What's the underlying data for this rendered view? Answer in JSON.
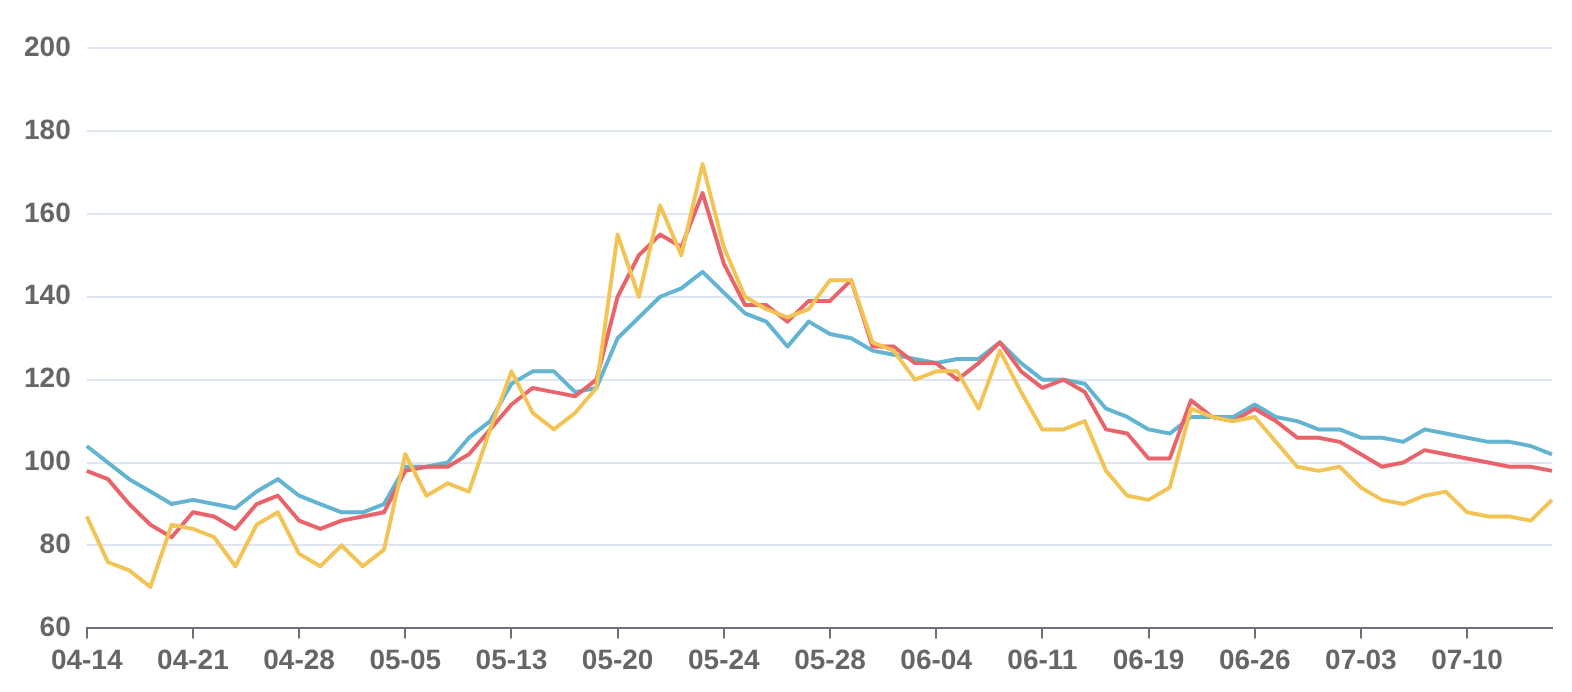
{
  "chart_data": {
    "type": "line",
    "categories": [
      "04-14",
      null,
      null,
      null,
      null,
      "04-21",
      null,
      null,
      null,
      null,
      "04-28",
      null,
      null,
      null,
      null,
      "05-05",
      null,
      null,
      null,
      null,
      "05-13",
      null,
      null,
      null,
      null,
      "05-20",
      null,
      null,
      null,
      null,
      "05-24",
      null,
      null,
      null,
      null,
      "05-28",
      null,
      null,
      null,
      null,
      "06-04",
      null,
      null,
      null,
      null,
      "06-11",
      null,
      null,
      null,
      null,
      "06-19",
      null,
      null,
      null,
      null,
      "06-26",
      null,
      null,
      null,
      null,
      "07-03",
      null,
      null,
      null,
      null,
      "07-10",
      null,
      null,
      null,
      null
    ],
    "series": [
      {
        "color": "#f2c455",
        "values": [
          87,
          76,
          74,
          70,
          85,
          84,
          82,
          75,
          85,
          88,
          78,
          75,
          80,
          75,
          79,
          102,
          92,
          95,
          93,
          108,
          122,
          112,
          108,
          112,
          118,
          155,
          140,
          162,
          150,
          172,
          152,
          140,
          137,
          135,
          137,
          144,
          144,
          129,
          127,
          120,
          122,
          122,
          113,
          127,
          117,
          108,
          108,
          110,
          98,
          92,
          91,
          94,
          113,
          111,
          110,
          111,
          105,
          99,
          98,
          99,
          94,
          91,
          90,
          92,
          93,
          88,
          87,
          87,
          86,
          91
        ]
      },
      {
        "color": "#e8646a",
        "values": [
          98,
          96,
          90,
          85,
          82,
          88,
          87,
          84,
          90,
          92,
          86,
          84,
          86,
          87,
          88,
          98,
          99,
          99,
          102,
          108,
          114,
          118,
          117,
          116,
          120,
          140,
          150,
          155,
          152,
          165,
          148,
          138,
          138,
          134,
          139,
          139,
          144,
          128,
          128,
          124,
          124,
          120,
          124,
          129,
          122,
          118,
          120,
          117,
          108,
          107,
          101,
          101,
          115,
          111,
          110,
          113,
          110,
          106,
          106,
          105,
          102,
          99,
          100,
          103,
          102,
          101,
          100,
          99,
          99,
          98
        ]
      },
      {
        "color": "#62b4d1",
        "values": [
          104,
          100,
          96,
          93,
          90,
          91,
          90,
          89,
          93,
          96,
          92,
          90,
          88,
          88,
          90,
          99,
          99,
          100,
          106,
          110,
          119,
          122,
          122,
          117,
          118,
          130,
          135,
          140,
          142,
          146,
          141,
          136,
          134,
          128,
          134,
          131,
          130,
          127,
          126,
          125,
          124,
          125,
          125,
          129,
          124,
          120,
          120,
          119,
          113,
          111,
          108,
          107,
          111,
          111,
          111,
          114,
          111,
          110,
          108,
          108,
          106,
          106,
          105,
          108,
          107,
          106,
          105,
          105,
          104,
          102
        ]
      }
    ],
    "ylim": [
      60,
      200
    ],
    "yticks": [
      60,
      80,
      100,
      120,
      140,
      160,
      180,
      200
    ],
    "grid": "y",
    "legend": false,
    "marker": "none",
    "line_style": "solid"
  }
}
